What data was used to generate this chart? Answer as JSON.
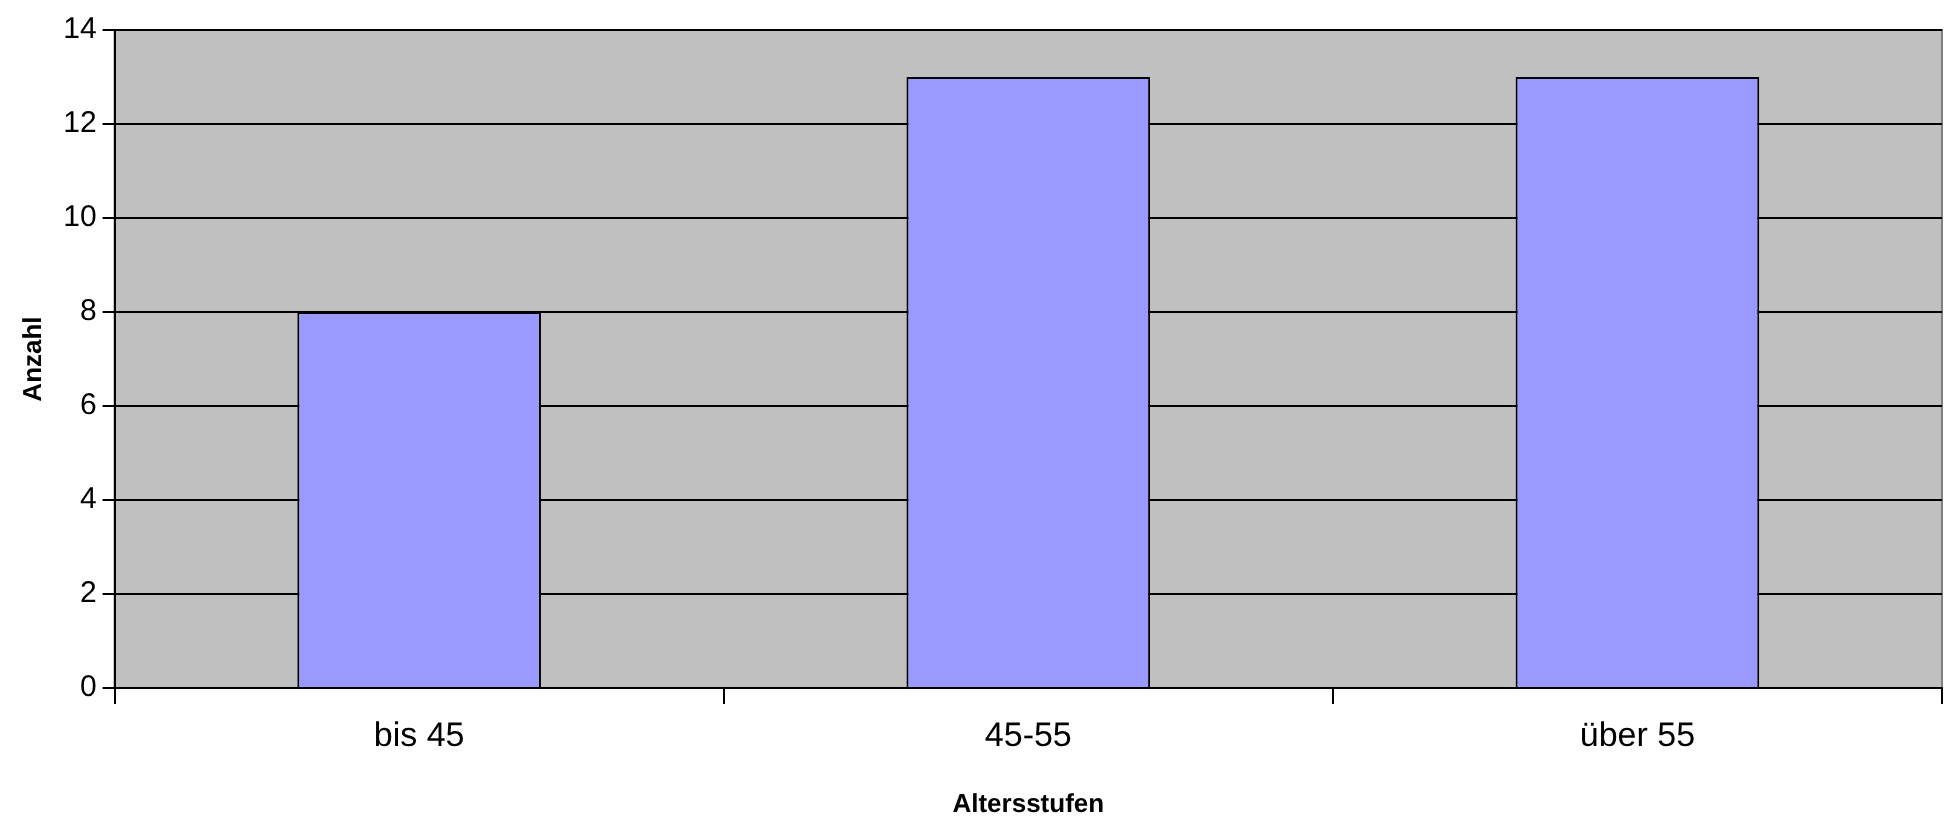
{
  "chart_data": {
    "type": "bar",
    "xlabel": "Altersstufen",
    "ylabel": "Anzahl",
    "categories": [
      "bis 45",
      "45-55",
      "über 55"
    ],
    "series": [
      {
        "color": "#9999ff",
        "values": [
          8,
          13,
          13
        ]
      }
    ],
    "ylim": [
      0,
      14
    ],
    "yticks": [
      0,
      2,
      4,
      6,
      8,
      10,
      12,
      14
    ],
    "grid": "y",
    "legend": false
  }
}
